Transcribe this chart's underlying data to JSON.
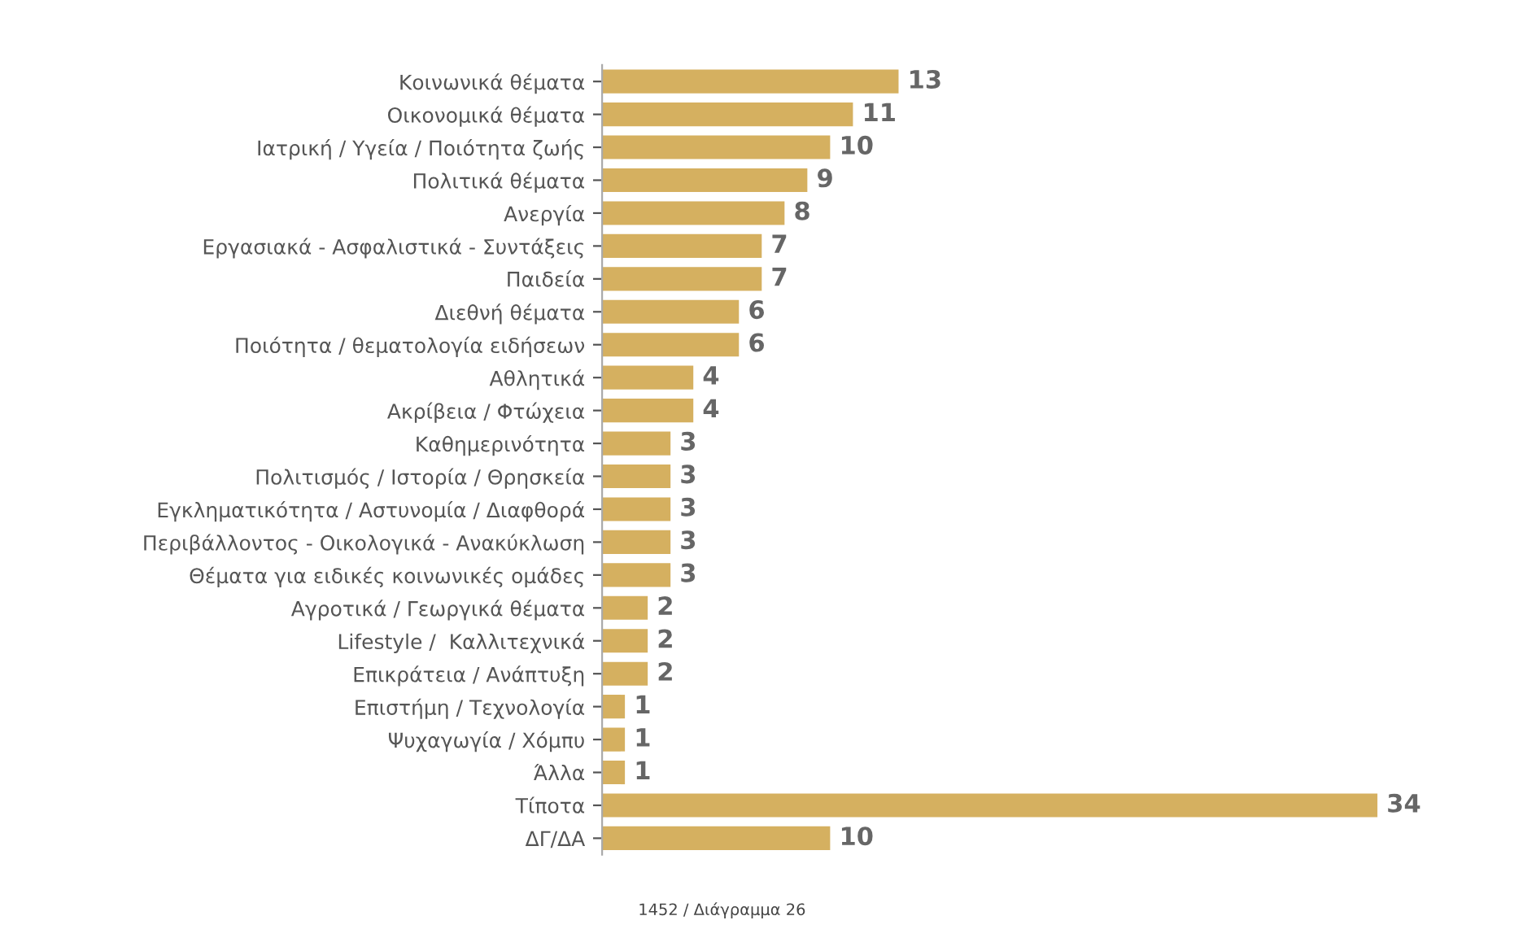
{
  "chart_data": {
    "type": "bar",
    "orientation": "horizontal",
    "color": "#d5b060",
    "data_labels": true,
    "grid": false,
    "legend": false,
    "tick_labels": "y",
    "categories": [
      "Κοινωνικά θέματα",
      "Οικονομικά θέματα",
      "Ιατρική / Υγεία / Ποιότητα ζωής",
      "Πολιτικά θέματα",
      "Ανεργία",
      "Εργασιακά - Ασφαλιστικά - Συντάξεις",
      "Παιδεία",
      "Διεθνή θέματα",
      "Ποιότητα / θεματολογία ειδήσεων",
      "Αθλητικά",
      "Ακρίβεια / Φτώχεια",
      "Καθημερινότητα",
      "Πολιτισμός / Ιστορία / Θρησκεία",
      "Εγκληματικότητα / Αστυνομία / Διαφθορά",
      "Περιβάλλοντος - Οικολογικά - Ανακύκλωση",
      "Θέματα για ειδικές κοινωνικές ομάδες",
      "Αγροτικά / Γεωργικά θέματα",
      "Lifestyle /  Καλλιτεχνικά",
      "Επικράτεια / Ανάπτυξη",
      "Επιστήμη / Τεχνολογία",
      "Ψυχαγωγία / Χόμπυ",
      "Άλλα",
      "Τίποτα",
      "ΔΓ/ΔΑ"
    ],
    "values": [
      13,
      11,
      10,
      9,
      8,
      7,
      7,
      6,
      6,
      4,
      4,
      3,
      3,
      3,
      3,
      3,
      2,
      2,
      2,
      1,
      1,
      1,
      34,
      10
    ],
    "annotations": [
      "1452 / Διάγραμμα 26"
    ]
  }
}
